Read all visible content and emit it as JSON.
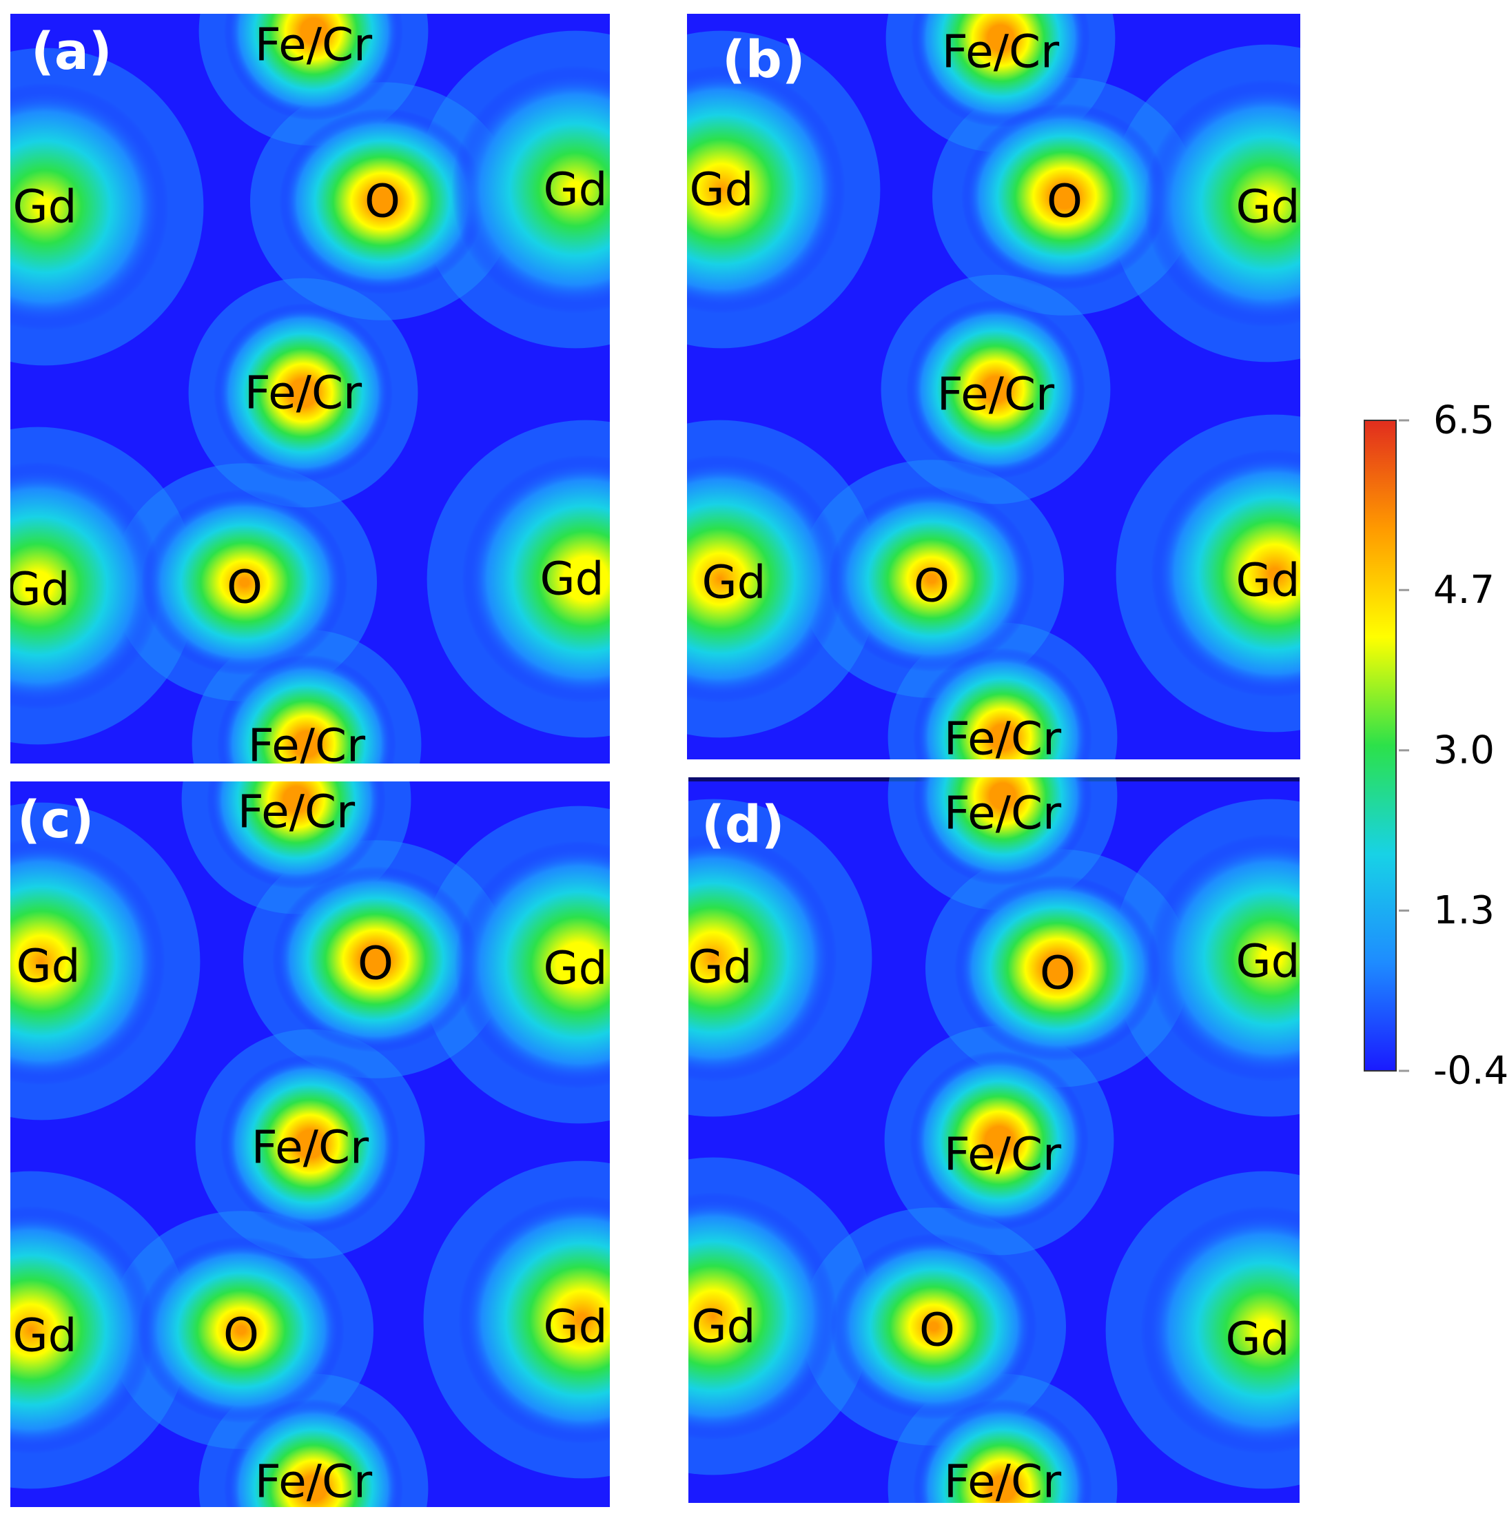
{
  "chart_data": {
    "type": "heatmap",
    "title": "",
    "colorbar": {
      "min": -0.4,
      "max": 6.5,
      "ticks": [
        6.5,
        4.7,
        3.0,
        1.3,
        -0.4
      ],
      "tick_labels": [
        "6.5",
        "4.7",
        "3.0",
        "1.3",
        "-0.4"
      ],
      "colors": [
        "#1a1aff",
        "#1e8cff",
        "#18d2e6",
        "#2ce14a",
        "#ffff00",
        "#ff9a00",
        "#e12d1e"
      ]
    },
    "panels": [
      {
        "id": "a",
        "label": "(a)",
        "atoms": [
          {
            "label": "Fe/Cr",
            "peak": 6.3
          },
          {
            "label": "Gd",
            "peak": 4.5
          },
          {
            "label": "O",
            "peak": 6.2
          },
          {
            "label": "Gd",
            "peak": 4.5
          },
          {
            "label": "Fe/Cr",
            "peak": 6.4
          },
          {
            "label": "Gd",
            "peak": 4.8
          },
          {
            "label": "O",
            "peak": 5.6
          },
          {
            "label": "Gd",
            "peak": 5.2
          },
          {
            "label": "Fe/Cr",
            "peak": 6.3
          }
        ]
      },
      {
        "id": "b",
        "label": "(b)",
        "atoms": [
          {
            "label": "Fe/Cr",
            "peak": 6.3
          },
          {
            "label": "Gd",
            "peak": 5.4
          },
          {
            "label": "O",
            "peak": 6.2
          },
          {
            "label": "Gd",
            "peak": 4.6
          },
          {
            "label": "Fe/Cr",
            "peak": 6.3
          },
          {
            "label": "Gd",
            "peak": 5.4
          },
          {
            "label": "O",
            "peak": 5.6
          },
          {
            "label": "Gd",
            "peak": 5.6
          },
          {
            "label": "Fe/Cr",
            "peak": 6.3
          }
        ]
      },
      {
        "id": "c",
        "label": "(c)",
        "atoms": [
          {
            "label": "Fe/Cr",
            "peak": 6.3
          },
          {
            "label": "Gd",
            "peak": 5.4
          },
          {
            "label": "O",
            "peak": 6.3
          },
          {
            "label": "Gd",
            "peak": 5.2
          },
          {
            "label": "Fe/Cr",
            "peak": 6.4
          },
          {
            "label": "Gd",
            "peak": 5.4
          },
          {
            "label": "O",
            "peak": 5.6
          },
          {
            "label": "Gd",
            "peak": 5.6
          },
          {
            "label": "Fe/Cr",
            "peak": 6.3
          }
        ]
      },
      {
        "id": "d",
        "label": "(d)",
        "atoms": [
          {
            "label": "Fe/Cr",
            "peak": 6.3
          },
          {
            "label": "Gd",
            "peak": 5.4
          },
          {
            "label": "O",
            "peak": 6.3
          },
          {
            "label": "Gd",
            "peak": 4.6
          },
          {
            "label": "Fe/Cr",
            "peak": 6.4
          },
          {
            "label": "Gd",
            "peak": 5.4
          },
          {
            "label": "O",
            "peak": 5.6
          },
          {
            "label": "Gd",
            "peak": 4.6
          },
          {
            "label": "Fe/Cr",
            "peak": 6.3
          }
        ]
      }
    ]
  }
}
